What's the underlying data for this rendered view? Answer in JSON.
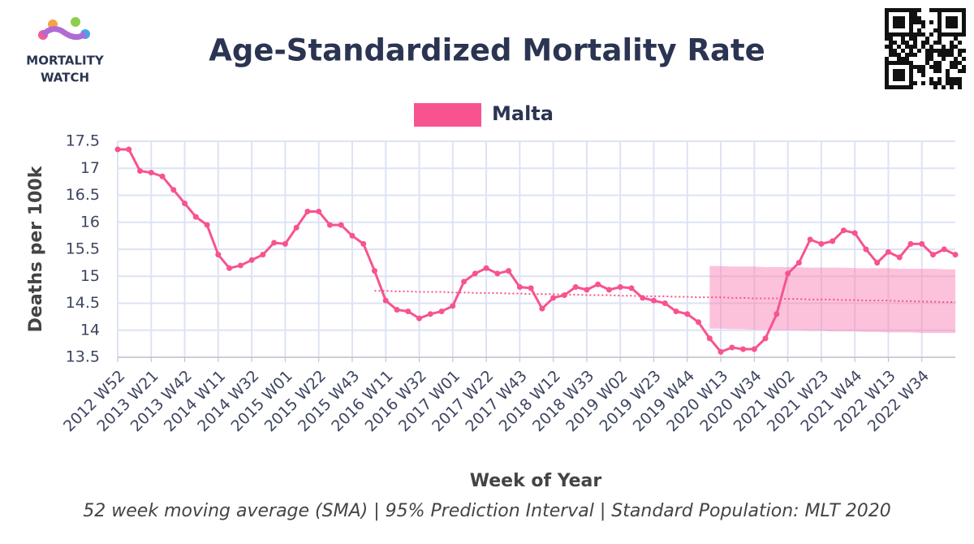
{
  "logo": {
    "line1": "MORTALITY",
    "line2": "WATCH"
  },
  "chart_data": {
    "type": "line",
    "title": "Age-Standardized Mortality Rate",
    "y_label": "Deaths per 100k",
    "x_label": "Week of Year",
    "caption": "52 week moving average (SMA) | 95% Prediction Interval | Standard Population: MLT 2020",
    "categories": [
      "2012 W52",
      null,
      null,
      "2013 W21",
      null,
      null,
      "2013 W42",
      null,
      null,
      "2014 W11",
      null,
      null,
      "2014 W32",
      null,
      null,
      "2015 W01",
      null,
      null,
      "2015 W22",
      null,
      null,
      "2015 W43",
      null,
      null,
      "2016 W11",
      null,
      null,
      "2016 W32",
      null,
      null,
      "2017 W01",
      null,
      null,
      "2017 W22",
      null,
      null,
      "2017 W43",
      null,
      null,
      "2018 W12",
      null,
      null,
      "2018 W33",
      null,
      null,
      "2019 W02",
      null,
      null,
      "2019 W23",
      null,
      null,
      "2019 W44",
      null,
      null,
      "2020 W13",
      null,
      null,
      "2020 W34",
      null,
      null,
      "2021 W02",
      null,
      null,
      "2021 W23",
      null,
      null,
      "2021 W44",
      null,
      null,
      "2022 W13",
      null,
      null,
      "2022 W34",
      null,
      null,
      null
    ],
    "series": [
      {
        "name": "Malta",
        "color": "#f7538f",
        "values": [
          17.35,
          17.35,
          16.95,
          16.92,
          16.85,
          16.6,
          16.35,
          16.1,
          15.95,
          15.4,
          15.15,
          15.2,
          15.3,
          15.4,
          15.62,
          15.6,
          15.9,
          16.2,
          16.2,
          15.95,
          15.95,
          15.75,
          15.6,
          15.1,
          14.55,
          14.38,
          14.35,
          14.22,
          14.3,
          14.35,
          14.45,
          14.9,
          15.05,
          15.15,
          15.05,
          15.1,
          14.8,
          14.78,
          14.4,
          14.6,
          14.65,
          14.8,
          14.75,
          14.85,
          14.75,
          14.8,
          14.78,
          14.6,
          14.55,
          14.5,
          14.35,
          14.3,
          14.15,
          13.85,
          13.6,
          13.68,
          13.65,
          13.65,
          13.85,
          14.3,
          15.05,
          15.25,
          15.68,
          15.6,
          15.65,
          15.85,
          15.8,
          15.5,
          15.25,
          15.45,
          15.35,
          15.6,
          15.6,
          15.4,
          15.5,
          15.4
        ]
      }
    ],
    "baseline": {
      "color": "#f7538f",
      "values": [
        null,
        null,
        null,
        null,
        null,
        null,
        null,
        null,
        null,
        null,
        null,
        null,
        null,
        null,
        null,
        null,
        null,
        null,
        null,
        null,
        null,
        null,
        null,
        14.73,
        14.73,
        14.72,
        14.72,
        14.71,
        14.71,
        14.71,
        14.7,
        14.7,
        14.69,
        14.69,
        14.69,
        14.68,
        14.68,
        14.67,
        14.67,
        14.67,
        14.66,
        14.66,
        14.65,
        14.65,
        14.65,
        14.64,
        14.64,
        14.63,
        14.63,
        14.63,
        14.62,
        14.62,
        14.61,
        14.61,
        14.61,
        14.6,
        14.6,
        14.59,
        14.59,
        14.59,
        14.58,
        14.58,
        14.57,
        14.57,
        14.57,
        14.56,
        14.56,
        14.55,
        14.55,
        14.55,
        14.54,
        14.54,
        14.53,
        14.53,
        14.52,
        14.52
      ]
    },
    "prediction_interval": {
      "color": "rgba(250,120,175,0.45)",
      "upper": [
        null,
        null,
        null,
        null,
        null,
        null,
        null,
        null,
        null,
        null,
        null,
        null,
        null,
        null,
        null,
        null,
        null,
        null,
        null,
        null,
        null,
        null,
        null,
        null,
        null,
        null,
        null,
        null,
        null,
        null,
        null,
        null,
        null,
        null,
        null,
        null,
        null,
        null,
        null,
        null,
        null,
        null,
        null,
        null,
        null,
        null,
        null,
        null,
        null,
        null,
        null,
        null,
        null,
        15.19,
        15.19,
        15.18,
        15.18,
        15.18,
        15.17,
        15.17,
        15.17,
        15.17,
        15.16,
        15.16,
        15.16,
        15.16,
        15.15,
        15.15,
        15.15,
        15.15,
        15.14,
        15.14,
        15.14,
        15.14,
        15.13,
        15.13
      ],
      "lower": [
        null,
        null,
        null,
        null,
        null,
        null,
        null,
        null,
        null,
        null,
        null,
        null,
        null,
        null,
        null,
        null,
        null,
        null,
        null,
        null,
        null,
        null,
        null,
        null,
        null,
        null,
        null,
        null,
        null,
        null,
        null,
        null,
        null,
        null,
        null,
        null,
        null,
        null,
        null,
        null,
        null,
        null,
        null,
        null,
        null,
        null,
        null,
        null,
        null,
        null,
        null,
        null,
        null,
        14.03,
        14.03,
        14.02,
        14.02,
        14.01,
        14.01,
        14.0,
        14.0,
        14.0,
        13.99,
        13.99,
        13.98,
        13.98,
        13.98,
        13.97,
        13.97,
        13.96,
        13.96,
        13.96,
        13.95,
        13.95,
        13.95,
        13.95
      ]
    },
    "ylim": [
      13.5,
      17.5
    ],
    "yticks": [
      13.5,
      14,
      14.5,
      15,
      15.5,
      16,
      16.5,
      17,
      17.5
    ],
    "grid": true
  }
}
